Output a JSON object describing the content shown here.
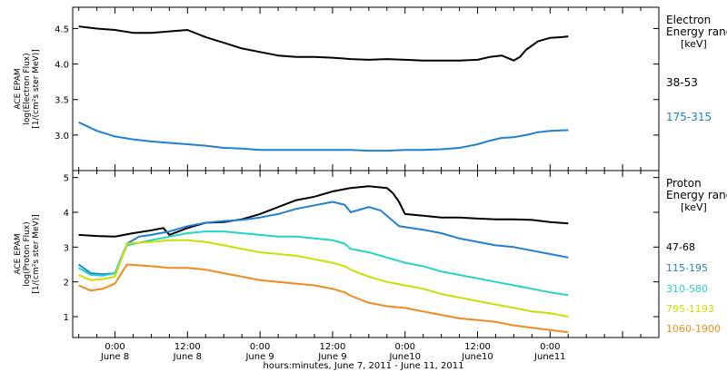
{
  "chart_data": [
    {
      "type": "line",
      "panel": "electron",
      "ylabel_lines": [
        "ACE EPAM",
        "log(Electron Flux)",
        "[1/(cm²s ster MeV)]"
      ],
      "ylim": [
        2.5,
        4.8
      ],
      "yticks": [
        3.0,
        3.5,
        4.0,
        4.5
      ],
      "ytick_labels": [
        "3.0",
        "3.5",
        "4.0",
        "4.5"
      ],
      "legend_title": [
        "Electron",
        "Energy range",
        "[keV]"
      ],
      "series": [
        {
          "name": "38-53",
          "color": "#000000",
          "points": [
            [
              -6,
              4.53
            ],
            [
              -3,
              4.5
            ],
            [
              0,
              4.48
            ],
            [
              3,
              4.44
            ],
            [
              6,
              4.44
            ],
            [
              9,
              4.46
            ],
            [
              12,
              4.48
            ],
            [
              15,
              4.38
            ],
            [
              18,
              4.3
            ],
            [
              21,
              4.22
            ],
            [
              24,
              4.17
            ],
            [
              27,
              4.12
            ],
            [
              30,
              4.1
            ],
            [
              33,
              4.1
            ],
            [
              36,
              4.09
            ],
            [
              39,
              4.07
            ],
            [
              42,
              4.06
            ],
            [
              45,
              4.07
            ],
            [
              48,
              4.06
            ],
            [
              51,
              4.05
            ],
            [
              54,
              4.05
            ],
            [
              57,
              4.05
            ],
            [
              60,
              4.06
            ],
            [
              62,
              4.1
            ],
            [
              64,
              4.12
            ],
            [
              66,
              4.05
            ],
            [
              67,
              4.1
            ],
            [
              68,
              4.2
            ],
            [
              70,
              4.32
            ],
            [
              72,
              4.37
            ],
            [
              74,
              4.38
            ],
            [
              75,
              4.39
            ]
          ]
        },
        {
          "name": "175-315",
          "color": "#1f7fd4",
          "points": [
            [
              -6,
              3.18
            ],
            [
              -3,
              3.06
            ],
            [
              0,
              2.98
            ],
            [
              3,
              2.94
            ],
            [
              6,
              2.91
            ],
            [
              9,
              2.89
            ],
            [
              12,
              2.87
            ],
            [
              15,
              2.85
            ],
            [
              18,
              2.82
            ],
            [
              21,
              2.81
            ],
            [
              24,
              2.79
            ],
            [
              27,
              2.79
            ],
            [
              30,
              2.79
            ],
            [
              33,
              2.79
            ],
            [
              36,
              2.79
            ],
            [
              39,
              2.79
            ],
            [
              42,
              2.78
            ],
            [
              45,
              2.78
            ],
            [
              48,
              2.79
            ],
            [
              51,
              2.79
            ],
            [
              54,
              2.8
            ],
            [
              57,
              2.82
            ],
            [
              60,
              2.87
            ],
            [
              62,
              2.92
            ],
            [
              64,
              2.96
            ],
            [
              66,
              2.97
            ],
            [
              68,
              3.0
            ],
            [
              70,
              3.04
            ],
            [
              72,
              3.06
            ],
            [
              75,
              3.07
            ]
          ]
        }
      ]
    },
    {
      "type": "line",
      "panel": "proton",
      "ylabel_lines": [
        "ACE EPAM",
        "log(Proton Flux)",
        "[1/(cm²s ster MeV)]"
      ],
      "ylim": [
        0.4,
        5.2
      ],
      "yticks": [
        1,
        2,
        3,
        4,
        5
      ],
      "ytick_labels": [
        "1",
        "2",
        "3",
        "4",
        "5"
      ],
      "legend_title": [
        "Proton",
        "Energy range",
        "[keV]"
      ],
      "series": [
        {
          "name": "47-68",
          "color": "#000000",
          "points": [
            [
              -6,
              3.35
            ],
            [
              -3,
              3.32
            ],
            [
              0,
              3.3
            ],
            [
              3,
              3.4
            ],
            [
              6,
              3.48
            ],
            [
              8,
              3.55
            ],
            [
              9,
              3.35
            ],
            [
              12,
              3.55
            ],
            [
              15,
              3.7
            ],
            [
              18,
              3.72
            ],
            [
              21,
              3.8
            ],
            [
              24,
              3.95
            ],
            [
              27,
              4.15
            ],
            [
              30,
              4.35
            ],
            [
              33,
              4.45
            ],
            [
              36,
              4.6
            ],
            [
              39,
              4.7
            ],
            [
              42,
              4.75
            ],
            [
              45,
              4.7
            ],
            [
              46,
              4.55
            ],
            [
              47,
              4.3
            ],
            [
              48,
              3.95
            ],
            [
              51,
              3.9
            ],
            [
              54,
              3.85
            ],
            [
              57,
              3.85
            ],
            [
              60,
              3.82
            ],
            [
              63,
              3.8
            ],
            [
              66,
              3.8
            ],
            [
              69,
              3.78
            ],
            [
              72,
              3.72
            ],
            [
              75,
              3.68
            ]
          ]
        },
        {
          "name": "115-195",
          "color": "#1f7fd4",
          "points": [
            [
              -6,
              2.5
            ],
            [
              -4,
              2.25
            ],
            [
              -2,
              2.22
            ],
            [
              0,
              2.25
            ],
            [
              2,
              3.1
            ],
            [
              4,
              3.3
            ],
            [
              6,
              3.35
            ],
            [
              9,
              3.45
            ],
            [
              12,
              3.6
            ],
            [
              15,
              3.7
            ],
            [
              18,
              3.75
            ],
            [
              21,
              3.78
            ],
            [
              24,
              3.85
            ],
            [
              27,
              3.95
            ],
            [
              30,
              4.1
            ],
            [
              33,
              4.2
            ],
            [
              36,
              4.3
            ],
            [
              38,
              4.22
            ],
            [
              39,
              4.0
            ],
            [
              42,
              4.15
            ],
            [
              44,
              4.05
            ],
            [
              47,
              3.6
            ],
            [
              51,
              3.5
            ],
            [
              54,
              3.4
            ],
            [
              57,
              3.25
            ],
            [
              60,
              3.15
            ],
            [
              63,
              3.05
            ],
            [
              66,
              3.0
            ],
            [
              69,
              2.9
            ],
            [
              72,
              2.8
            ],
            [
              75,
              2.7
            ]
          ]
        },
        {
          "name": "310-580",
          "color": "#22d3c8",
          "points": [
            [
              -6,
              2.4
            ],
            [
              -4,
              2.2
            ],
            [
              -2,
              2.18
            ],
            [
              0,
              2.25
            ],
            [
              2,
              3.05
            ],
            [
              6,
              3.2
            ],
            [
              9,
              3.3
            ],
            [
              12,
              3.4
            ],
            [
              15,
              3.45
            ],
            [
              18,
              3.45
            ],
            [
              21,
              3.4
            ],
            [
              24,
              3.35
            ],
            [
              27,
              3.3
            ],
            [
              30,
              3.3
            ],
            [
              33,
              3.25
            ],
            [
              36,
              3.2
            ],
            [
              38,
              3.1
            ],
            [
              39,
              2.95
            ],
            [
              42,
              2.85
            ],
            [
              45,
              2.7
            ],
            [
              48,
              2.55
            ],
            [
              51,
              2.45
            ],
            [
              54,
              2.3
            ],
            [
              57,
              2.2
            ],
            [
              60,
              2.1
            ],
            [
              63,
              2.0
            ],
            [
              66,
              1.9
            ],
            [
              69,
              1.8
            ],
            [
              72,
              1.7
            ],
            [
              75,
              1.62
            ]
          ]
        },
        {
          "name": "795-1193",
          "color": "#c8e000",
          "points": [
            [
              -6,
              2.2
            ],
            [
              -4,
              2.05
            ],
            [
              -2,
              2.08
            ],
            [
              0,
              2.15
            ],
            [
              2,
              3.1
            ],
            [
              6,
              3.15
            ],
            [
              9,
              3.2
            ],
            [
              12,
              3.2
            ],
            [
              15,
              3.15
            ],
            [
              18,
              3.05
            ],
            [
              21,
              2.95
            ],
            [
              24,
              2.85
            ],
            [
              27,
              2.8
            ],
            [
              30,
              2.75
            ],
            [
              33,
              2.65
            ],
            [
              36,
              2.55
            ],
            [
              38,
              2.45
            ],
            [
              39,
              2.35
            ],
            [
              42,
              2.15
            ],
            [
              45,
              2.0
            ],
            [
              48,
              1.9
            ],
            [
              51,
              1.8
            ],
            [
              54,
              1.65
            ],
            [
              57,
              1.55
            ],
            [
              60,
              1.45
            ],
            [
              63,
              1.35
            ],
            [
              66,
              1.25
            ],
            [
              69,
              1.15
            ],
            [
              72,
              1.1
            ],
            [
              75,
              1.0
            ]
          ]
        },
        {
          "name": "1060-1900",
          "color": "#f08a1e",
          "points": [
            [
              -6,
              1.9
            ],
            [
              -4,
              1.75
            ],
            [
              -2,
              1.8
            ],
            [
              0,
              1.95
            ],
            [
              2,
              2.5
            ],
            [
              6,
              2.45
            ],
            [
              9,
              2.4
            ],
            [
              12,
              2.4
            ],
            [
              15,
              2.35
            ],
            [
              18,
              2.25
            ],
            [
              21,
              2.15
            ],
            [
              24,
              2.05
            ],
            [
              27,
              2.0
            ],
            [
              30,
              1.95
            ],
            [
              33,
              1.9
            ],
            [
              36,
              1.8
            ],
            [
              38,
              1.7
            ],
            [
              39,
              1.6
            ],
            [
              42,
              1.4
            ],
            [
              45,
              1.3
            ],
            [
              48,
              1.25
            ],
            [
              51,
              1.15
            ],
            [
              54,
              1.05
            ],
            [
              57,
              0.95
            ],
            [
              60,
              0.9
            ],
            [
              63,
              0.85
            ],
            [
              66,
              0.75
            ],
            [
              69,
              0.68
            ],
            [
              72,
              0.62
            ],
            [
              75,
              0.55
            ]
          ]
        }
      ]
    }
  ],
  "x_axis": {
    "xlim": [
      -7,
      90
    ],
    "ticks": [
      {
        "x": 0,
        "time": "0:00",
        "date": "June 8"
      },
      {
        "x": 12,
        "time": "12:00",
        "date": "June 8"
      },
      {
        "x": 24,
        "time": "0:00",
        "date": "June 9"
      },
      {
        "x": 36,
        "time": "12:00",
        "date": "June 9"
      },
      {
        "x": 48,
        "time": "0:00",
        "date": "June10"
      },
      {
        "x": 60,
        "time": "12:00",
        "date": "June10"
      },
      {
        "x": 72,
        "time": "0:00",
        "date": "June11"
      }
    ],
    "minor_step": 3,
    "xlabel": "hours:minutes, June  7, 2011 - June 11, 2011"
  }
}
